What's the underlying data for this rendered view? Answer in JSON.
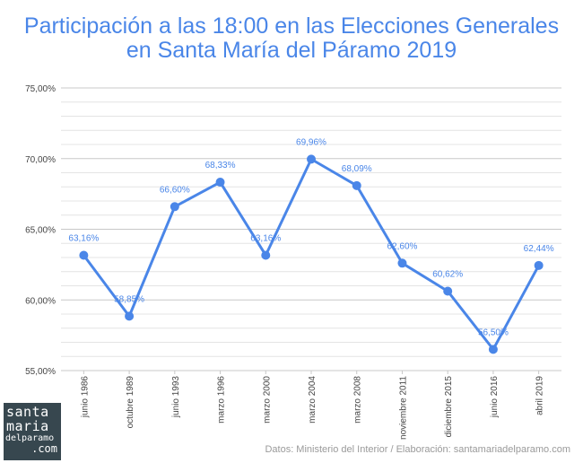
{
  "title_line1": "Participación a las 18:00 en las Elecciones Generales",
  "title_line2": "en Santa María del Páramo 2019",
  "source": "Datos: Ministerio del Interior / Elaboración: santamariadelparamo.com",
  "logo": {
    "line1": "santa",
    "line2": "maria",
    "line3": "delparamo",
    "line4": ".com"
  },
  "colors": {
    "series": "#4a86e8",
    "grid": "#d9d9d9",
    "axis_text": "#444444",
    "logo_bg": "#37474f",
    "source_text": "#9a9a9a"
  },
  "chart_data": {
    "type": "line",
    "categories": [
      "junio 1986",
      "octubre 1989",
      "junio 1993",
      "marzo 1996",
      "marzo 2000",
      "marzo 2004",
      "marzo 2008",
      "noviembre 2011",
      "diciembre 2015",
      "junio 2016",
      "abril 2019"
    ],
    "values": [
      63.16,
      58.85,
      66.6,
      68.33,
      63.16,
      69.96,
      68.09,
      62.6,
      60.62,
      56.5,
      62.44
    ],
    "data_labels": [
      "63,16%",
      "58,85%",
      "66,60%",
      "68,33%",
      "63,16%",
      "69,96%",
      "68,09%",
      "62,60%",
      "60,62%",
      "56,50%",
      "62,44%"
    ],
    "yticks": [
      55,
      60,
      65,
      70,
      75
    ],
    "ytick_labels": [
      "55,00%",
      "60,00%",
      "65,00%",
      "70,00%",
      "75,00%"
    ],
    "ylim": [
      55,
      75
    ],
    "minor_step": 1,
    "grid": true,
    "legend": false
  }
}
